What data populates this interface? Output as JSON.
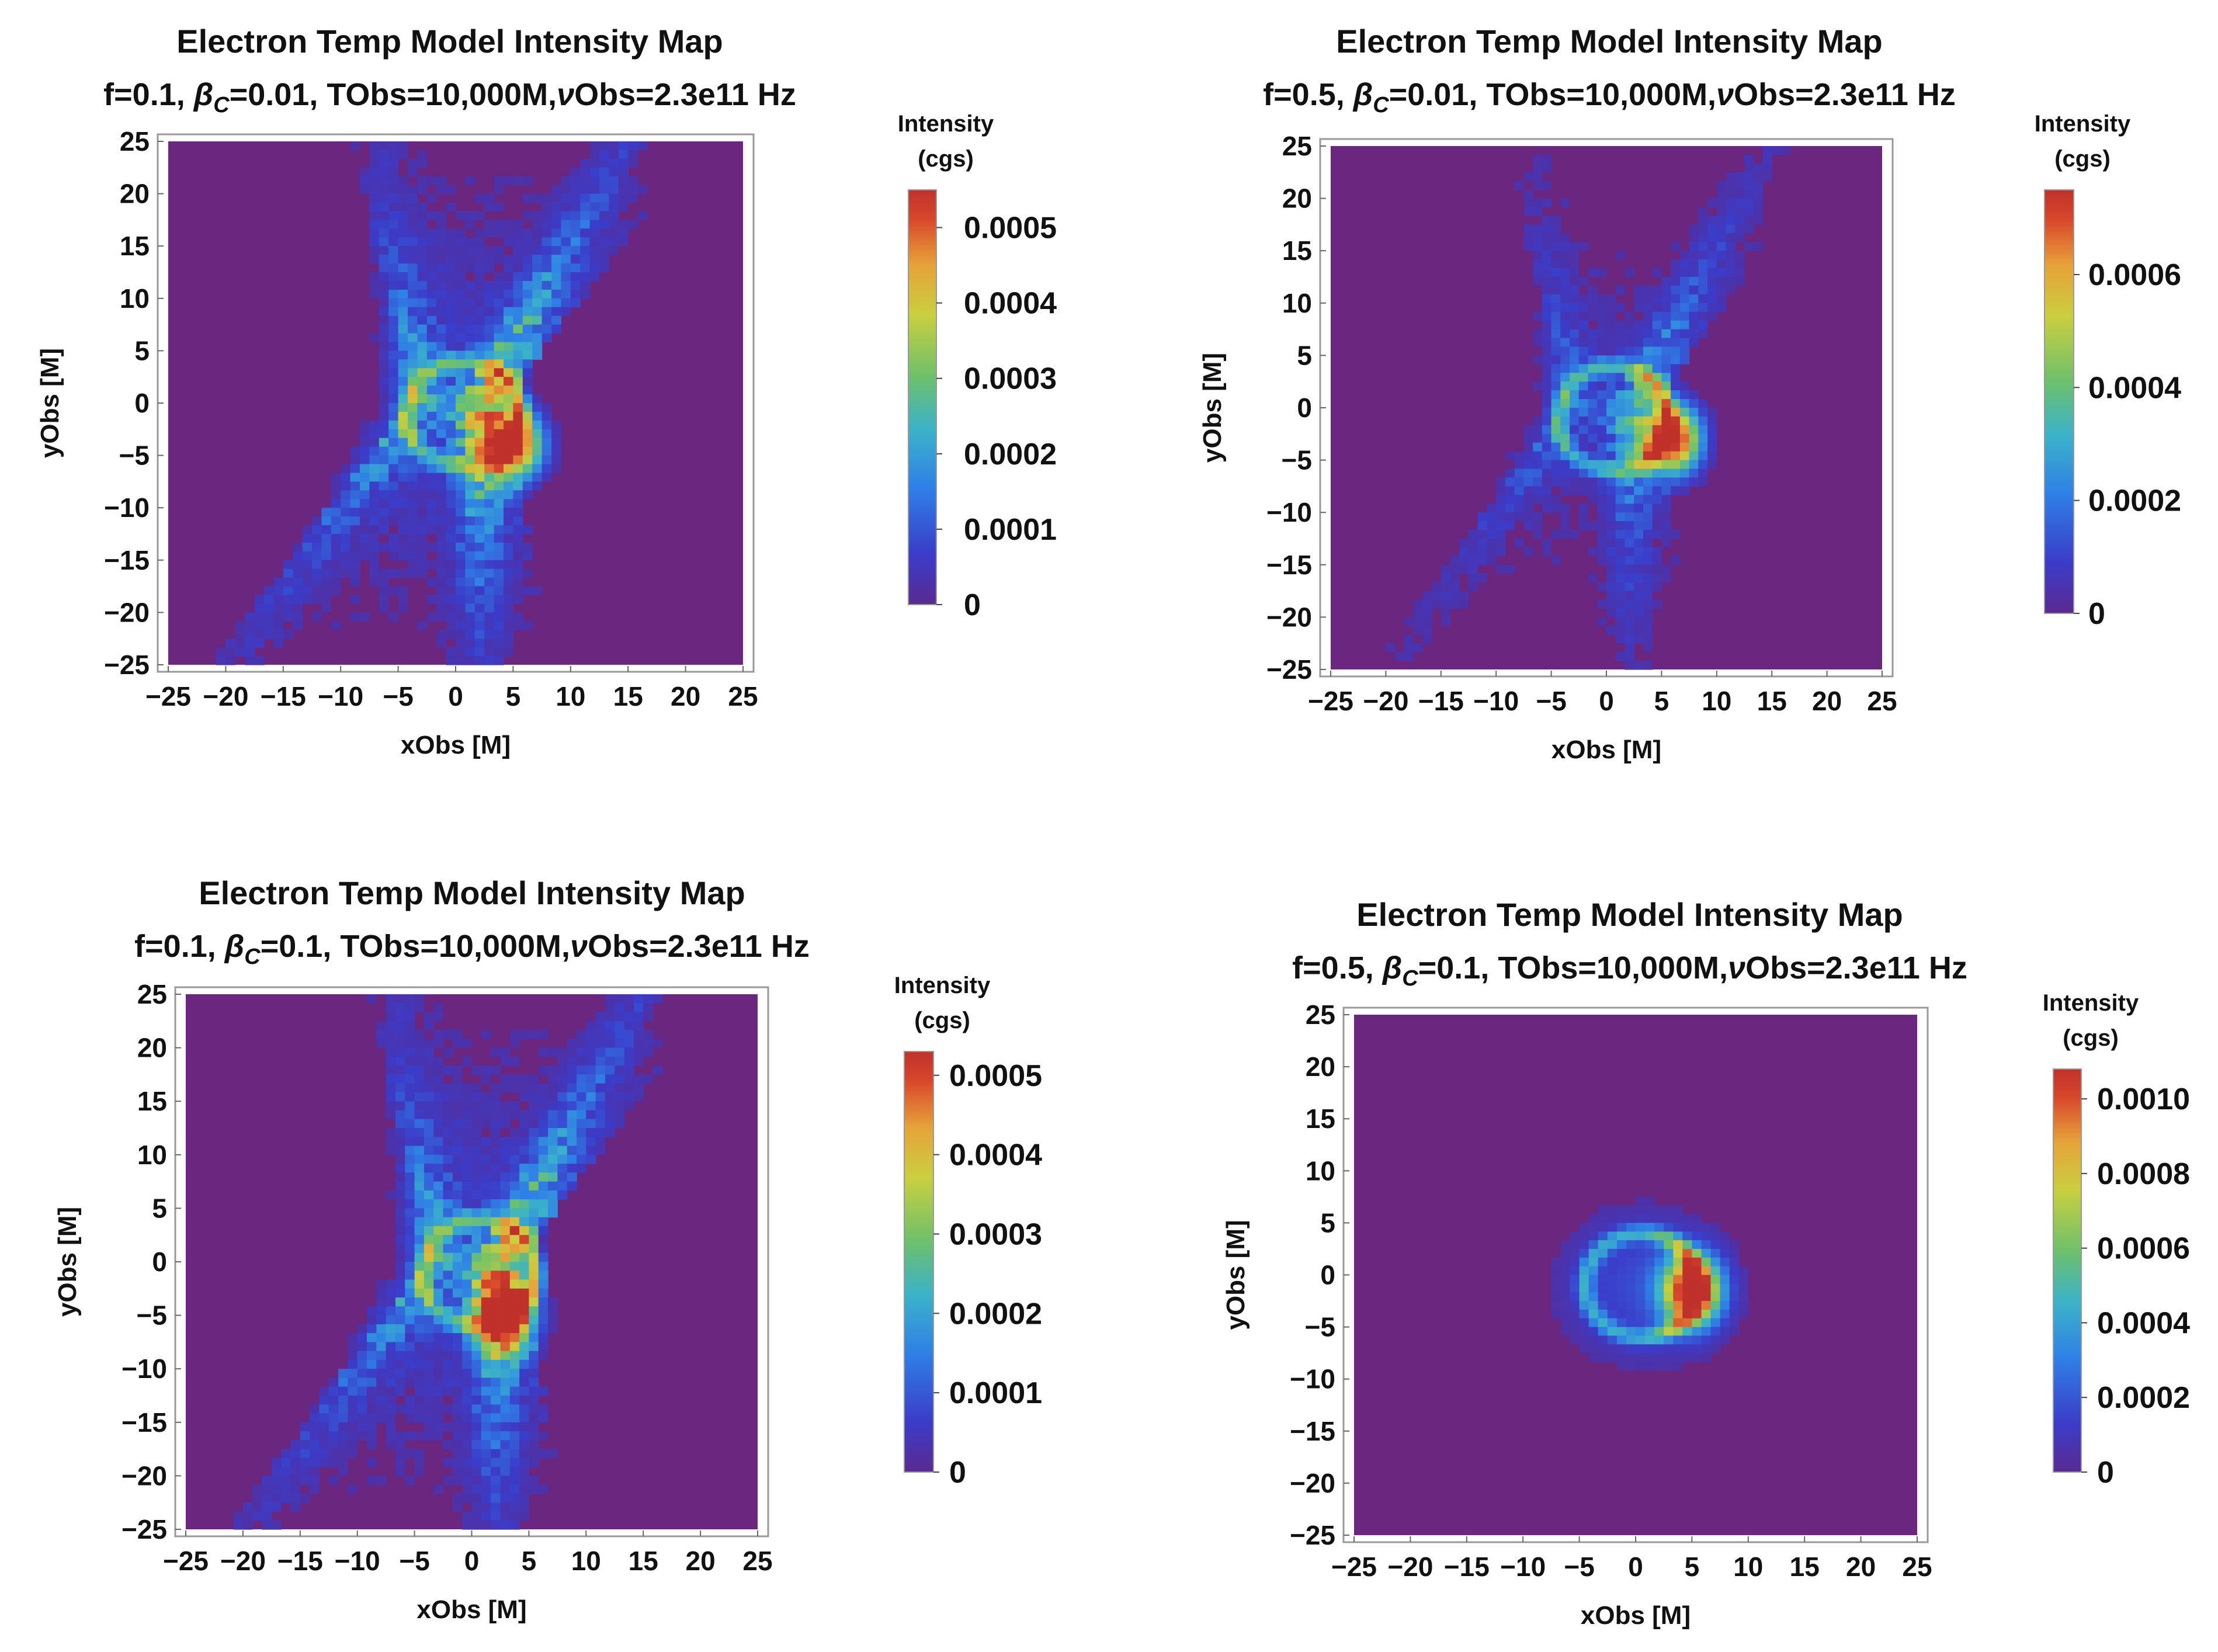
{
  "colors": {
    "background": "#6b2780",
    "frame": "#999999",
    "colormap": [
      "#5a2a91",
      "#3b3cc9",
      "#2f7fe6",
      "#3bb2c9",
      "#6ec06b",
      "#c9cf3f",
      "#e6a23a",
      "#d8472b",
      "#c0312b"
    ]
  },
  "chart_data": [
    {
      "type": "heatmap",
      "id": "tl",
      "title": "Electron Temp Model Intensity Map",
      "subtitle": {
        "f": "f=0.1,",
        "beta_sym": "β",
        "beta_sub": "C",
        "beta_val": "=0.01,",
        "tobs": "TObs=10,000M,",
        "nu_sym": "ν",
        "nu_val": "Obs=2.3e11 Hz"
      },
      "xlabel": "xObs [M]",
      "ylabel": "yObs [M]",
      "xlim": [
        -25,
        25
      ],
      "ylim": [
        -25,
        25
      ],
      "xticks": [
        "−25",
        "−20",
        "−15",
        "−10",
        "−5",
        "0",
        "5",
        "10",
        "15",
        "20",
        "25"
      ],
      "yticks": [
        "25",
        "20",
        "15",
        "10",
        "5",
        "0",
        "−5",
        "−10",
        "−15",
        "−20",
        "−25"
      ],
      "colorbar": {
        "title_line1": "Intensity",
        "title_line2": "(cgs)",
        "max": 0.00055,
        "labels": [
          "0.0005",
          "0.0004",
          "0.0003",
          "0.0002",
          "0.0001",
          "0"
        ],
        "label_values": [
          0.0005,
          0.0004,
          0.0003,
          0.0002,
          0.0001,
          0
        ]
      },
      "features": {
        "ring_radius": 5,
        "ring_center": [
          0.5,
          -1
        ],
        "hot_spot": [
          5,
          -4
        ],
        "jets": true,
        "jet_strength": 0.5,
        "hot_strength": 0.95,
        "description": "bright bipolar emission funnel, hot spot lower right"
      }
    },
    {
      "type": "heatmap",
      "id": "tr",
      "title": "Electron Temp Model Intensity Map",
      "subtitle": {
        "f": "f=0.5,",
        "beta_sym": "β",
        "beta_sub": "C",
        "beta_val": "=0.01,",
        "tobs": "TObs=10,000M,",
        "nu_sym": "ν",
        "nu_val": "Obs=2.3e11 Hz"
      },
      "xlabel": "xObs [M]",
      "ylabel": "yObs [M]",
      "xlim": [
        -25,
        25
      ],
      "ylim": [
        -25,
        25
      ],
      "xticks": [
        "−25",
        "−20",
        "−15",
        "−10",
        "−5",
        "0",
        "5",
        "10",
        "15",
        "20",
        "25"
      ],
      "yticks": [
        "25",
        "20",
        "15",
        "10",
        "5",
        "0",
        "−5",
        "−10",
        "−15",
        "−20",
        "−25"
      ],
      "colorbar": {
        "title_line1": "Intensity",
        "title_line2": "(cgs)",
        "max": 0.00075,
        "labels": [
          "0.0006",
          "0.0004",
          "0.0002",
          "0"
        ],
        "label_values": [
          0.0006,
          0.0004,
          0.0002,
          0
        ]
      },
      "features": {
        "ring_radius": 5,
        "ring_center": [
          0.5,
          -1
        ],
        "hot_spot": [
          6,
          -3
        ],
        "jets": true,
        "jet_strength": 0.3,
        "hot_strength": 1.0,
        "description": "fainter funnel with visible photon ring"
      }
    },
    {
      "type": "heatmap",
      "id": "bl",
      "title": "Electron Temp Model Intensity Map",
      "subtitle": {
        "f": "f=0.1,",
        "beta_sym": "β",
        "beta_sub": "C",
        "beta_val": "=0.1,",
        "tobs": "TObs=10,000M,",
        "nu_sym": "ν",
        "nu_val": "Obs=2.3e11 Hz"
      },
      "xlabel": "xObs [M]",
      "ylabel": "yObs [M]",
      "xlim": [
        -25,
        25
      ],
      "ylim": [
        -25,
        25
      ],
      "xticks": [
        "−25",
        "−20",
        "−15",
        "−10",
        "−5",
        "0",
        "5",
        "10",
        "15",
        "20",
        "25"
      ],
      "yticks": [
        "25",
        "20",
        "15",
        "10",
        "5",
        "0",
        "−5",
        "−10",
        "−15",
        "−20",
        "−25"
      ],
      "colorbar": {
        "title_line1": "Intensity",
        "title_line2": "(cgs)",
        "max": 0.00053,
        "labels": [
          "0.0005",
          "0.0004",
          "0.0003",
          "0.0002",
          "0.0001",
          "0"
        ],
        "label_values": [
          0.0005,
          0.0004,
          0.0003,
          0.0002,
          0.0001,
          0
        ]
      },
      "features": {
        "ring_radius": 5,
        "ring_center": [
          0.5,
          -1
        ],
        "hot_spot": [
          3,
          -5
        ],
        "jets": true,
        "jet_strength": 0.5,
        "hot_strength": 0.95,
        "description": "bipolar funnel with bright band across center"
      }
    },
    {
      "type": "heatmap",
      "id": "br",
      "title": "Electron Temp Model Intensity Map",
      "subtitle": {
        "f": "f=0.5,",
        "beta_sym": "β",
        "beta_sub": "C",
        "beta_val": "=0.1,",
        "tobs": "TObs=10,000M,",
        "nu_sym": "ν",
        "nu_val": "Obs=2.3e11 Hz"
      },
      "xlabel": "xObs [M]",
      "ylabel": "yObs [M]",
      "xlim": [
        -25,
        25
      ],
      "ylim": [
        -25,
        25
      ],
      "xticks": [
        "−25",
        "−20",
        "−15",
        "−10",
        "−5",
        "0",
        "5",
        "10",
        "15",
        "20",
        "25"
      ],
      "yticks": [
        "25",
        "20",
        "15",
        "10",
        "5",
        "0",
        "−5",
        "−10",
        "−15",
        "−20",
        "−25"
      ],
      "colorbar": {
        "title_line1": "Intensity",
        "title_line2": "(cgs)",
        "max": 0.00108,
        "labels": [
          "0.0010",
          "0.0008",
          "0.0006",
          "0.0004",
          "0.0002",
          "0"
        ],
        "label_values": [
          0.001,
          0.0008,
          0.0006,
          0.0004,
          0.0002,
          0
        ]
      },
      "features": {
        "ring_radius": 5,
        "ring_center": [
          0.5,
          -1
        ],
        "hot_spot": [
          5,
          -1.5
        ],
        "jets": false,
        "jet_strength": 0.0,
        "hot_strength": 1.0,
        "description": "compact crescent / photon ring, no extended funnel"
      }
    }
  ]
}
